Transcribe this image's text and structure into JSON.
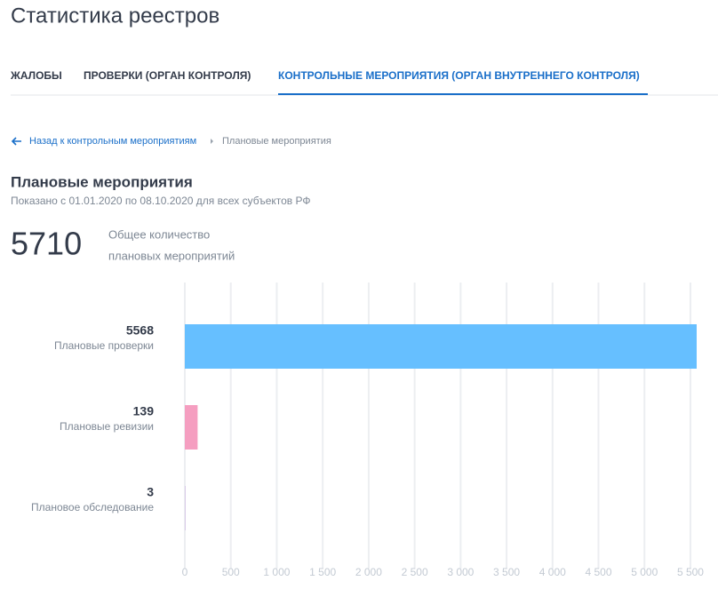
{
  "header": {
    "title": "Статистика реестров"
  },
  "tabs": [
    "ЖАЛОБЫ",
    "ПРОВЕРКИ (ОРГАН КОНТРОЛЯ)",
    "КОНТРОЛЬНЫЕ МЕРОПРИЯТИЯ (ОРГАН ВНУТРЕННЕГО КОНТРОЛЯ)"
  ],
  "breadcrumb": {
    "back": "Назад к контрольным мероприятиям",
    "current": "Плановые мероприятия"
  },
  "section": {
    "title": "Плановые мероприятия",
    "subtitle": "Показано с 01.01.2020 по 08.10.2020 для всех субъектов РФ"
  },
  "summary": {
    "total": 5710,
    "label_lines": [
      "Общее количество",
      "плановых мероприятий"
    ]
  },
  "chart_data": {
    "type": "bar",
    "orientation": "horizontal",
    "categories": [
      "Плановые проверки",
      "Плановые ревизии",
      "Плановое обследование"
    ],
    "values": [
      5568,
      139,
      3
    ],
    "colors": [
      "#66bfff",
      "#f59ec0",
      "#b07fd6"
    ],
    "xlim": [
      0,
      5800
    ],
    "xticks": [
      0,
      500,
      {
        "value": 1000,
        "label": "1 000"
      },
      {
        "value": 1500,
        "label": "1 500"
      },
      {
        "value": 2000,
        "label": "2 000"
      },
      {
        "value": 2500,
        "label": "2 500"
      },
      {
        "value": 3000,
        "label": "3 000"
      },
      {
        "value": 3500,
        "label": "3 500"
      },
      {
        "value": 4000,
        "label": "4 000"
      },
      {
        "value": 4500,
        "label": "4 500"
      },
      {
        "value": 5000,
        "label": "5 000"
      },
      {
        "value": 5500,
        "label": "5 500"
      }
    ],
    "grid": true
  }
}
